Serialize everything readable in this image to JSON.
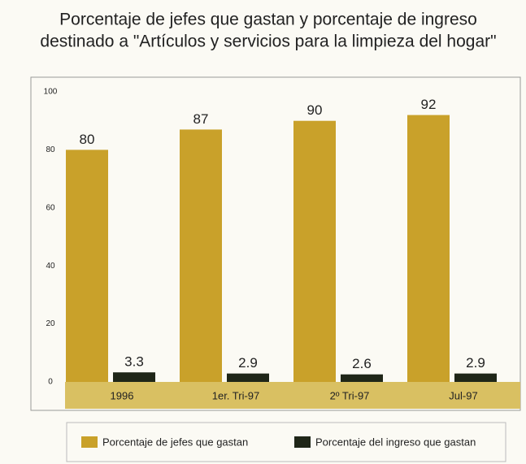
{
  "chart_data": {
    "type": "bar",
    "title": [
      "Porcentaje de jefes que gastan y porcentaje de ingreso",
      "destinado a \"Artículos y servicios para la limpieza del hogar\""
    ],
    "categories": [
      "1996",
      "1er. Tri-97",
      "2º Tri-97",
      "Jul-97"
    ],
    "series": [
      {
        "name": "Porcentaje de jefes que gastan",
        "color": "#c9a12a",
        "values": [
          80,
          87,
          90,
          92
        ]
      },
      {
        "name": "Porcentaje del ingreso que gastan",
        "color": "#1f2618",
        "values": [
          3.3,
          2.9,
          2.6,
          2.9
        ]
      }
    ],
    "ylim": [
      0,
      100
    ],
    "yticks": [
      0,
      20,
      40,
      60,
      80,
      100
    ],
    "grid": false,
    "legend": "bottom"
  }
}
